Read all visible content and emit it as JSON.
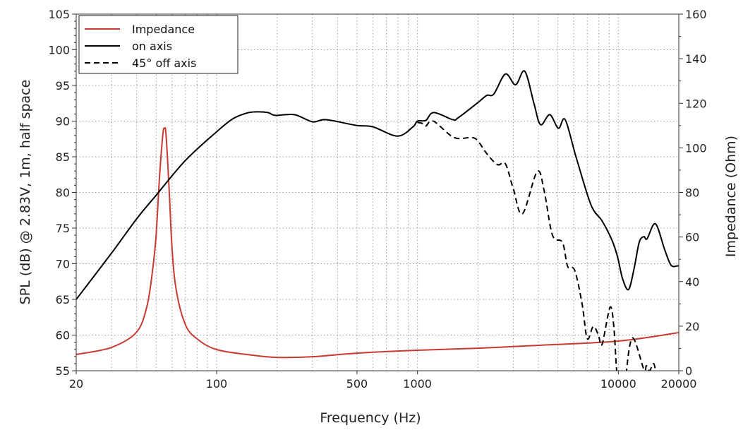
{
  "chart_data": {
    "type": "line",
    "title": "",
    "xlabel": "Frequency (Hz)",
    "ylabel": "SPL (dB) @ 2.83V, 1m, half space",
    "y2label": "Impedance (Ohm)",
    "x_scale": "log",
    "xlim": [
      20,
      20000
    ],
    "ylim": [
      55,
      105
    ],
    "y2lim": [
      0,
      160
    ],
    "grid": true,
    "legend_position": "top-left",
    "x_ticks": [
      "20",
      "100",
      "500",
      "1000",
      "10000",
      "20000"
    ],
    "y_ticks": [
      "55",
      "60",
      "65",
      "70",
      "75",
      "80",
      "85",
      "90",
      "95",
      "100",
      "105"
    ],
    "y2_ticks": [
      "0",
      "20",
      "40",
      "60",
      "80",
      "100",
      "120",
      "140",
      "160"
    ],
    "series": [
      {
        "name": "Impedance",
        "axis": "right",
        "color": "#c83a32",
        "style": "solid",
        "x": [
          20,
          30,
          40,
          45,
          48,
          50,
          52,
          54,
          55,
          56,
          58,
          60,
          63,
          70,
          80,
          100,
          150,
          200,
          300,
          500,
          1000,
          2000,
          4000,
          10000,
          20000
        ],
        "y": [
          7.3,
          10.5,
          17.4,
          29,
          45,
          61,
          87,
          106,
          108.7,
          106,
          82,
          55,
          36,
          20.6,
          14.3,
          9.5,
          7.0,
          6.0,
          6.3,
          7.9,
          9.2,
          10.1,
          11.4,
          13.3,
          17.1
        ]
      },
      {
        "name": "on axis",
        "axis": "left",
        "color": "#000000",
        "style": "solid",
        "x": [
          20,
          30,
          40,
          50,
          70,
          100,
          120,
          140,
          157,
          180,
          196,
          244,
          300,
          350,
          497,
          600,
          795,
          950,
          1000,
          1100,
          1206,
          1500,
          1600,
          2000,
          2212,
          2400,
          2740,
          3080,
          3420,
          3800,
          4100,
          4560,
          5030,
          5440,
          6170,
          7300,
          8300,
          9300,
          9900,
          10500,
          11250,
          12000,
          12700,
          13400,
          13900,
          15300,
          17000,
          18300,
          19700,
          20000
        ],
        "y": [
          65,
          71.5,
          76.3,
          79.6,
          84.5,
          88.5,
          90.3,
          91.1,
          91.3,
          91.2,
          90.8,
          90.9,
          89.9,
          90.2,
          89.4,
          89.2,
          87.9,
          89.2,
          90.0,
          90.1,
          91.2,
          90.2,
          90.5,
          92.6,
          93.6,
          93.8,
          96.6,
          95.1,
          97.0,
          92.5,
          89.5,
          90.9,
          89.0,
          90.2,
          84.9,
          78.3,
          76.0,
          73.3,
          71.0,
          67.9,
          66.4,
          69.4,
          73.0,
          73.8,
          73.5,
          75.6,
          72.0,
          69.8,
          69.7,
          69.7
        ]
      },
      {
        "name": "45° off axis",
        "axis": "left",
        "color": "#000000",
        "style": "dashed",
        "x": [
          1000,
          1050,
          1100,
          1200,
          1520,
          1860,
          2000,
          2220,
          2500,
          2740,
          3000,
          3330,
          3940,
          4270,
          4700,
          5270,
          5600,
          6060,
          6600,
          7000,
          7500,
          7960,
          8300,
          9100,
          9500,
          9800,
          10200,
          10800,
          11000,
          11800,
          13400,
          13800,
          14300,
          15000,
          15400
        ],
        "y": [
          89.8,
          89.7,
          89.3,
          90.0,
          87.7,
          87.7,
          87.2,
          85.4,
          83.9,
          84.0,
          80.5,
          77.0,
          82.9,
          80.3,
          74.0,
          73.0,
          69.6,
          69.1,
          64.4,
          59.5,
          61.2,
          60.0,
          58.7,
          63.9,
          61.1,
          55.2,
          50,
          50,
          55.2,
          59.6,
          55.2,
          55.7,
          55.0,
          56.0,
          54.5
        ]
      }
    ]
  }
}
